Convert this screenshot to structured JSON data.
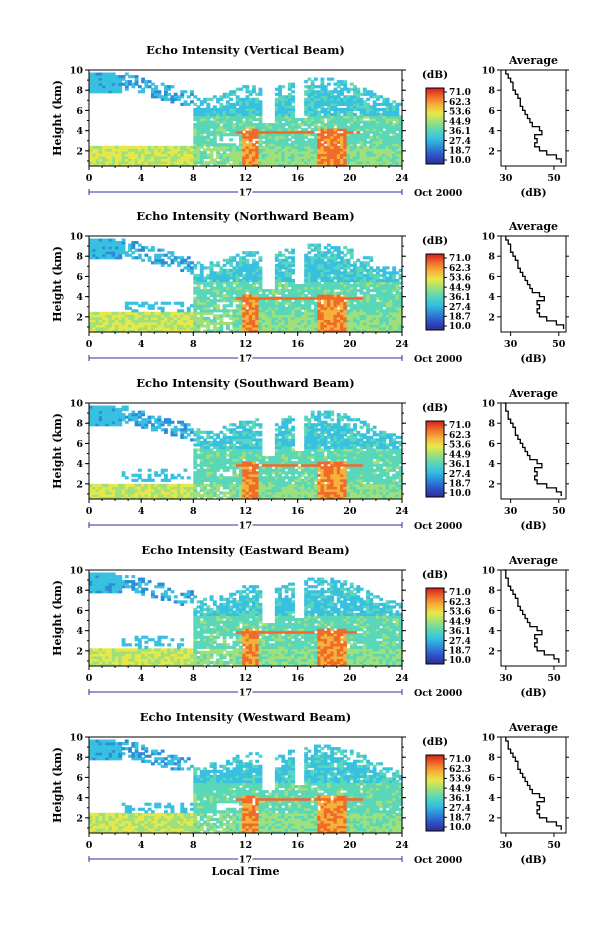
{
  "figure": {
    "xlabel": "Local Time",
    "colorbar_unit": "(dB)",
    "colorbar_ticks": [
      "71.0",
      "62.3",
      "53.6",
      "44.9",
      "36.1",
      "27.4",
      "18.7",
      "10.0"
    ],
    "date_label": "Oct 2000",
    "day_label": "17",
    "avg_title": "Average",
    "avg_xlabel": "(dB)",
    "colormap": [
      "#2b2f8f",
      "#3050c8",
      "#2c8cd8",
      "#38c0e0",
      "#5ad6b8",
      "#9fe07a",
      "#e6e84a",
      "#f5b23a",
      "#f06a2a",
      "#d21e1e"
    ]
  },
  "chart_data": [
    {
      "type": "heatmap",
      "title": "Echo Intensity (Vertical Beam)",
      "xlabel": "",
      "ylabel": "Height (km)",
      "xlim": [
        0,
        24
      ],
      "ylim": [
        0.5,
        10
      ],
      "xticks": [
        0,
        4,
        8,
        12,
        16,
        20,
        24
      ],
      "yticks": [
        2,
        4,
        6,
        8,
        10
      ],
      "cloud_top_km": [
        9.7,
        9.6,
        9.5,
        9.0,
        8.5,
        8.0,
        7.7,
        7.5,
        7.3,
        7.2,
        7.5,
        8.0,
        8.5,
        8.2,
        8.0,
        8.6,
        8.9,
        9.1,
        9.2,
        9.0,
        8.6,
        8.1,
        7.5,
        7.0,
        6.5
      ],
      "low_layer_top_km": 2.5,
      "strong_bands_h": [
        [
          11.7,
          12.8
        ],
        [
          17.5,
          19.5
        ]
      ],
      "melting_layer_km": 3.7,
      "average": {
        "type": "line",
        "xlabel": "(dB)",
        "ylabel": "",
        "xlim": [
          28,
          55
        ],
        "ylim": [
          0.5,
          10
        ],
        "xticks": [
          30,
          50
        ],
        "yticks": [
          2,
          4,
          6,
          8,
          10
        ],
        "height": [
          0.8,
          1.2,
          1.6,
          2.0,
          2.4,
          2.8,
          3.2,
          3.6,
          4.0,
          4.4,
          4.8,
          5.2,
          5.6,
          6.0,
          6.4,
          6.8,
          7.2,
          7.6,
          8.0,
          8.4,
          8.8,
          9.2,
          9.6,
          10.0
        ],
        "values": [
          53,
          51,
          47,
          44,
          42,
          43,
          42,
          45,
          44,
          41,
          40,
          39,
          38,
          37,
          36,
          36,
          35,
          34,
          33,
          33,
          32,
          31,
          30,
          30
        ]
      }
    },
    {
      "type": "heatmap",
      "title": "Echo Intensity (Northward Beam)",
      "xlabel": "",
      "ylabel": "Height (km)",
      "xlim": [
        0,
        24
      ],
      "ylim": [
        0.5,
        10
      ],
      "xticks": [
        0,
        4,
        8,
        12,
        16,
        20,
        24
      ],
      "yticks": [
        2,
        4,
        6,
        8,
        10
      ],
      "cloud_top_km": [
        9.7,
        9.6,
        9.5,
        9.0,
        8.5,
        8.0,
        7.7,
        7.5,
        7.3,
        7.2,
        7.5,
        8.0,
        8.5,
        8.2,
        8.0,
        8.6,
        8.9,
        9.1,
        9.2,
        9.0,
        8.6,
        8.1,
        7.5,
        7.0,
        6.5
      ],
      "low_layer_top_km": 2.3,
      "strong_bands_h": [
        [
          11.7,
          12.8
        ],
        [
          17.5,
          19.5
        ]
      ],
      "melting_layer_km": 3.7,
      "average": {
        "type": "line",
        "xlabel": "(dB)",
        "ylabel": "",
        "xlim": [
          26,
          53
        ],
        "ylim": [
          0.5,
          10
        ],
        "xticks": [
          30,
          50
        ],
        "yticks": [
          2,
          4,
          6,
          8,
          10
        ],
        "height": [
          0.8,
          1.2,
          1.6,
          2.0,
          2.4,
          2.8,
          3.2,
          3.6,
          4.0,
          4.4,
          4.8,
          5.2,
          5.6,
          6.0,
          6.4,
          6.8,
          7.2,
          7.6,
          8.0,
          8.4,
          8.8,
          9.2,
          9.6,
          10.0
        ],
        "values": [
          52,
          49,
          45,
          42,
          41,
          42,
          41,
          44,
          42,
          39,
          38,
          37,
          36,
          35,
          34,
          33,
          33,
          32,
          31,
          30,
          30,
          29,
          28,
          28
        ]
      }
    },
    {
      "type": "heatmap",
      "title": "Echo Intensity (Southward Beam)",
      "xlabel": "",
      "ylabel": "Height (km)",
      "xlim": [
        0,
        24
      ],
      "ylim": [
        0.5,
        10
      ],
      "xticks": [
        0,
        4,
        8,
        12,
        16,
        20,
        24
      ],
      "yticks": [
        2,
        4,
        6,
        8,
        10
      ],
      "cloud_top_km": [
        9.7,
        9.6,
        9.5,
        9.0,
        8.5,
        8.0,
        7.7,
        7.5,
        7.3,
        7.2,
        7.5,
        8.0,
        8.5,
        8.2,
        8.0,
        8.6,
        8.9,
        9.1,
        9.2,
        9.0,
        8.6,
        8.1,
        7.5,
        7.0,
        6.5
      ],
      "low_layer_top_km": 2.0,
      "strong_bands_h": [
        [
          11.7,
          12.8
        ],
        [
          17.5,
          19.5
        ]
      ],
      "melting_layer_km": 3.7,
      "average": {
        "type": "line",
        "xlabel": "(dB)",
        "ylabel": "",
        "xlim": [
          26,
          53
        ],
        "ylim": [
          0.5,
          10
        ],
        "xticks": [
          30,
          50
        ],
        "yticks": [
          2,
          4,
          6,
          8,
          10
        ],
        "height": [
          0.8,
          1.2,
          1.6,
          2.0,
          2.4,
          2.8,
          3.2,
          3.6,
          4.0,
          4.4,
          4.8,
          5.2,
          5.6,
          6.0,
          6.4,
          6.8,
          7.2,
          7.6,
          8.0,
          8.4,
          8.8,
          9.2,
          9.6,
          10.0
        ],
        "values": [
          51,
          49,
          45,
          41,
          40,
          41,
          40,
          43,
          41,
          38,
          37,
          36,
          35,
          34,
          33,
          32,
          32,
          31,
          30,
          29,
          29,
          28,
          28,
          27
        ]
      }
    },
    {
      "type": "heatmap",
      "title": "Echo Intensity (Eastward Beam)",
      "xlabel": "",
      "ylabel": "Height (km)",
      "xlim": [
        0,
        24
      ],
      "ylim": [
        0.5,
        10
      ],
      "xticks": [
        0,
        4,
        8,
        12,
        16,
        20,
        24
      ],
      "yticks": [
        2,
        4,
        6,
        8,
        10
      ],
      "cloud_top_km": [
        9.7,
        9.6,
        9.5,
        9.0,
        8.5,
        8.0,
        7.7,
        7.5,
        7.3,
        7.2,
        7.5,
        8.0,
        8.5,
        8.2,
        8.0,
        8.6,
        8.9,
        9.1,
        9.2,
        9.0,
        8.6,
        8.1,
        7.5,
        7.0,
        6.5
      ],
      "low_layer_top_km": 2.2,
      "strong_bands_h": [
        [
          11.7,
          12.8
        ],
        [
          17.5,
          19.5
        ]
      ],
      "melting_layer_km": 3.7,
      "average": {
        "type": "line",
        "xlabel": "(dB)",
        "ylabel": "",
        "xlim": [
          28,
          55
        ],
        "ylim": [
          0.5,
          10
        ],
        "xticks": [
          30,
          50
        ],
        "yticks": [
          2,
          4,
          6,
          8,
          10
        ],
        "height": [
          0.8,
          1.2,
          1.6,
          2.0,
          2.4,
          2.8,
          3.2,
          3.6,
          4.0,
          4.4,
          4.8,
          5.2,
          5.6,
          6.0,
          6.4,
          6.8,
          7.2,
          7.6,
          8.0,
          8.4,
          8.8,
          9.2,
          9.6,
          10.0
        ],
        "values": [
          52,
          50,
          46,
          43,
          42,
          43,
          42,
          45,
          43,
          40,
          39,
          38,
          37,
          36,
          35,
          35,
          34,
          33,
          32,
          31,
          31,
          30,
          30,
          29
        ]
      }
    },
    {
      "type": "heatmap",
      "title": "Echo Intensity (Westward Beam)",
      "xlabel": "Local Time",
      "ylabel": "Height (km)",
      "xlim": [
        0,
        24
      ],
      "ylim": [
        0.5,
        10
      ],
      "xticks": [
        0,
        4,
        8,
        12,
        16,
        20,
        24
      ],
      "yticks": [
        2,
        4,
        6,
        8,
        10
      ],
      "cloud_top_km": [
        9.7,
        9.6,
        9.5,
        9.0,
        8.5,
        8.0,
        7.7,
        7.5,
        7.3,
        7.2,
        7.5,
        8.0,
        8.5,
        8.2,
        8.0,
        8.6,
        8.9,
        9.1,
        9.2,
        9.0,
        8.6,
        8.1,
        7.5,
        7.0,
        6.5
      ],
      "low_layer_top_km": 2.3,
      "strong_bands_h": [
        [
          11.7,
          12.8
        ],
        [
          17.5,
          19.5
        ]
      ],
      "melting_layer_km": 3.7,
      "average": {
        "type": "line",
        "xlabel": "(dB)",
        "ylabel": "",
        "xlim": [
          28,
          55
        ],
        "ylim": [
          0.5,
          10
        ],
        "xticks": [
          30,
          50
        ],
        "yticks": [
          2,
          4,
          6,
          8,
          10
        ],
        "height": [
          0.8,
          1.2,
          1.6,
          2.0,
          2.4,
          2.8,
          3.2,
          3.6,
          4.0,
          4.4,
          4.8,
          5.2,
          5.6,
          6.0,
          6.4,
          6.8,
          7.2,
          7.6,
          8.0,
          8.4,
          8.8,
          9.2,
          9.6,
          10.0
        ],
        "values": [
          53,
          51,
          47,
          44,
          43,
          44,
          43,
          46,
          44,
          41,
          40,
          39,
          38,
          37,
          36,
          35,
          35,
          34,
          33,
          32,
          31,
          31,
          30,
          30
        ]
      }
    }
  ]
}
